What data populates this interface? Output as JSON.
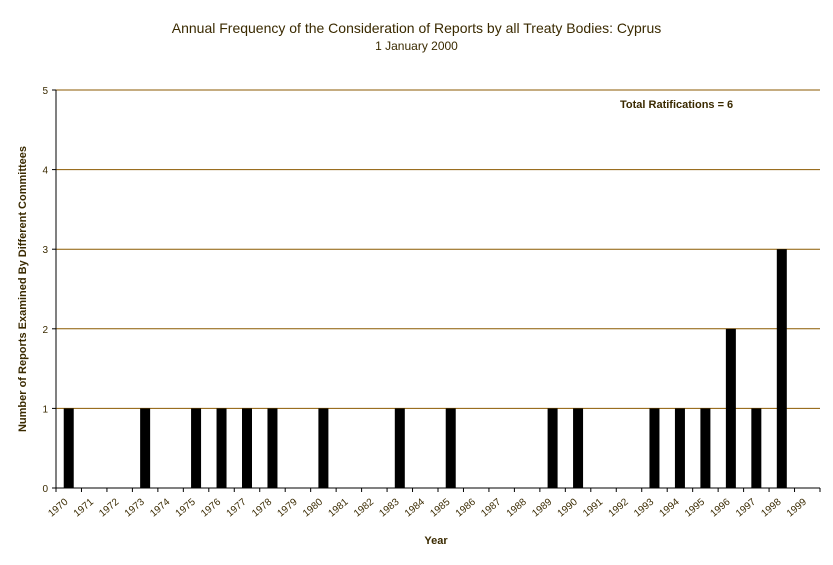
{
  "chart_data": {
    "type": "bar",
    "title": "Annual Frequency of the Consideration of Reports by all Treaty Bodies: Cyprus",
    "subtitle": "1 January 2000",
    "xlabel": "Year",
    "ylabel": "Number of Reports Examined By Different Committees",
    "annotation": "Total Ratifications = 6",
    "ylim": [
      0,
      5
    ],
    "yticks": [
      "0",
      "1",
      "2",
      "3",
      "4",
      "5"
    ],
    "grid": true,
    "categories": [
      "1970",
      "1971",
      "1972",
      "1973",
      "1974",
      "1975",
      "1976",
      "1977",
      "1978",
      "1979",
      "1980",
      "1981",
      "1982",
      "1983",
      "1984",
      "1985",
      "1986",
      "1987",
      "1988",
      "1989",
      "1990",
      "1991",
      "1992",
      "1993",
      "1994",
      "1995",
      "1996",
      "1997",
      "1998",
      "1999"
    ],
    "values": [
      1,
      0,
      0,
      1,
      0,
      1,
      1,
      1,
      1,
      0,
      1,
      0,
      0,
      1,
      0,
      1,
      0,
      0,
      0,
      1,
      1,
      0,
      0,
      1,
      1,
      1,
      2,
      1,
      3,
      0
    ],
    "colors": {
      "bar": "#000000",
      "grid": "#8b5a00",
      "axis": "#000000",
      "text": "#3a2a00"
    }
  }
}
